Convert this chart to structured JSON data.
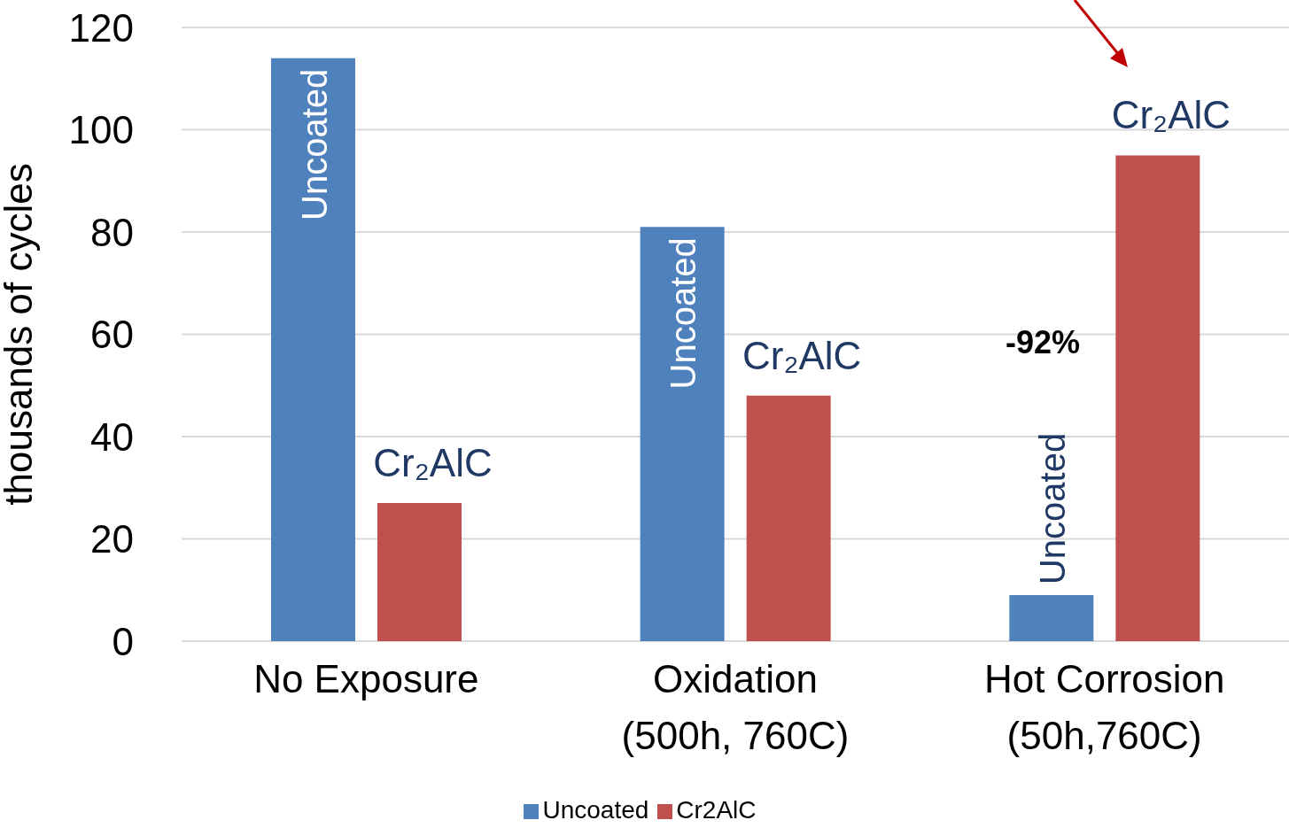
{
  "chart_data": {
    "type": "bar",
    "ylabel": "thousands of cycles",
    "categories": [
      "No Exposure",
      "Oxidation\n(500h, 760C)",
      "Hot Corrosion\n(50h,760C)"
    ],
    "series": [
      {
        "name": "Uncoated",
        "color": "#4f81bd",
        "values": [
          114,
          81,
          9
        ],
        "value_labels": [
          "Uncoated",
          "Uncoated",
          "Uncoated"
        ]
      },
      {
        "name": "Cr2AlC",
        "color": "#c0504d",
        "values": [
          27,
          48,
          95
        ],
        "value_labels": [
          "Cr₂AlC",
          "Cr₂AlC",
          "Cr₂AlC"
        ]
      }
    ],
    "ylim": [
      0,
      120
    ],
    "yticks": [
      0,
      20,
      40,
      60,
      80,
      100,
      120
    ],
    "grid": "y",
    "legend": "bottom",
    "annotations": [
      "-92%"
    ]
  }
}
